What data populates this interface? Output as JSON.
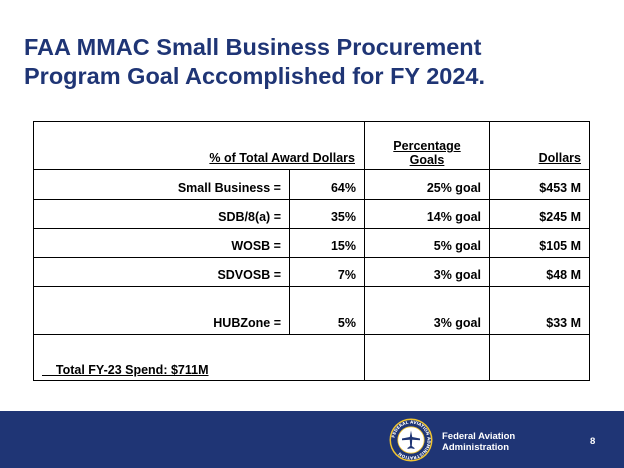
{
  "title": {
    "line1": "FAA MMAC Small Business Procurement",
    "line2": "Program Goal Accomplished for FY 2024."
  },
  "table": {
    "headers": {
      "category": "% of Total Award Dollars",
      "percentage_goals_line1": "Percentage",
      "percentage_goals_line2": "Goals",
      "dollars": "Dollars"
    },
    "rows": [
      {
        "label": "Small Business =",
        "percent": "64%",
        "goal": "25% goal",
        "dollars": "$453 M"
      },
      {
        "label": "SDB/8(a) =",
        "percent": "35%",
        "goal": "14% goal",
        "dollars": "$245 M"
      },
      {
        "label": "WOSB =",
        "percent": "15%",
        "goal": "5% goal",
        "dollars": "$105 M"
      },
      {
        "label": "SDVOSB =",
        "percent": "7%",
        "goal": "3% goal",
        "dollars": "$48 M"
      },
      {
        "label": "HUBZone =",
        "percent": "5%",
        "goal": "3% goal",
        "dollars": "$33 M"
      }
    ],
    "total": "    Total FY-23 Spend: $711M"
  },
  "footer": {
    "agency_line1": "Federal Aviation",
    "agency_line2": "Administration",
    "page_number": "8",
    "seal_text": "FEDERAL AVIATION ADMINISTRATION",
    "seal_icon": "faa-seal-icon"
  },
  "colors": {
    "brand_navy": "#1f3575",
    "text": "#000000",
    "background": "#ffffff"
  }
}
